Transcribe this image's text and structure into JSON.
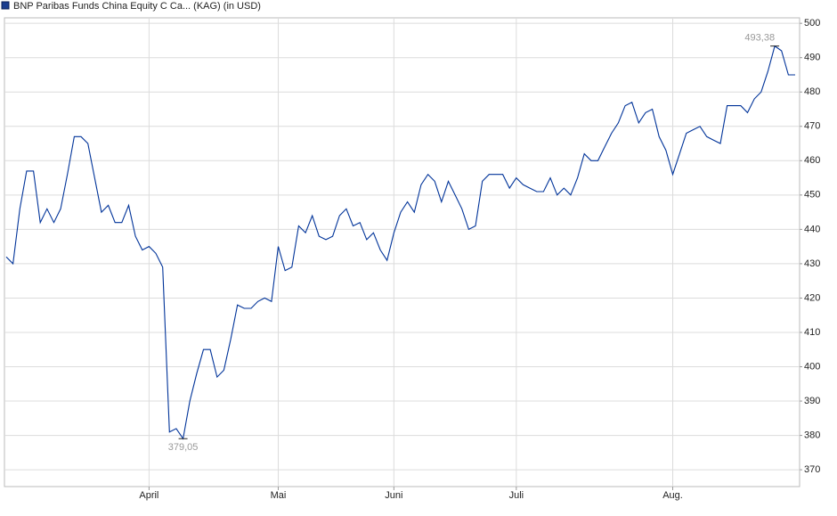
{
  "chart_data": {
    "type": "line",
    "categories": [
      null,
      null,
      null,
      null,
      null,
      null,
      null,
      null,
      null,
      null,
      null,
      null,
      null,
      null,
      null,
      null,
      null,
      null,
      null,
      null,
      null,
      "April",
      null,
      null,
      null,
      null,
      null,
      null,
      null,
      null,
      null,
      null,
      null,
      null,
      null,
      null,
      null,
      null,
      null,
      null,
      "Mai",
      null,
      null,
      null,
      null,
      null,
      null,
      null,
      null,
      null,
      null,
      null,
      null,
      null,
      null,
      null,
      null,
      "Juni",
      null,
      null,
      null,
      null,
      null,
      null,
      null,
      null,
      null,
      null,
      null,
      null,
      null,
      null,
      null,
      null,
      null,
      "Juli",
      null,
      null,
      null,
      null,
      null,
      null,
      null,
      null,
      null,
      null,
      null,
      null,
      null,
      null,
      null,
      null,
      null,
      null,
      null,
      null,
      null,
      null,
      "Aug.",
      null,
      null,
      null,
      null,
      null,
      null,
      null,
      null,
      null,
      null,
      null,
      null,
      null,
      null,
      null,
      null,
      null,
      null
    ],
    "series": [
      {
        "name": "BNP Paribas Funds China Equity C Ca... (KAG) (in USD)",
        "color": "#003399",
        "values": [
          432,
          430,
          446,
          457,
          457,
          442,
          446,
          442,
          446,
          456,
          467,
          467,
          465,
          455,
          445,
          447,
          442,
          442,
          447,
          438,
          434,
          435,
          433,
          429,
          381,
          382,
          379.05,
          390,
          398,
          405,
          405,
          397,
          399,
          408,
          418,
          417,
          417,
          419,
          420,
          419,
          435,
          428,
          429,
          441,
          439,
          444,
          438,
          437,
          438,
          444,
          446,
          441,
          442,
          437,
          439,
          434,
          431,
          439,
          445,
          448,
          445,
          453,
          456,
          454,
          448,
          454,
          450,
          446,
          440,
          441,
          454,
          456,
          456,
          456,
          452,
          455,
          453,
          452,
          451,
          451,
          455,
          450,
          452,
          450,
          455,
          462,
          460,
          460,
          464,
          468,
          471,
          476,
          477,
          471,
          474,
          475,
          467,
          463,
          456,
          462,
          468,
          469,
          470,
          467,
          466,
          465,
          476,
          476,
          476,
          474,
          478,
          480,
          486,
          493.38,
          492,
          485,
          485
        ],
        "value_labels": [
          null,
          null,
          null,
          null,
          null,
          null,
          null,
          null,
          null,
          null,
          null,
          null,
          null,
          null,
          null,
          null,
          null,
          null,
          null,
          null,
          null,
          null,
          null,
          null,
          null,
          null,
          "379,05",
          null,
          null,
          null,
          null,
          null,
          null,
          null,
          null,
          null,
          null,
          null,
          null,
          null,
          null,
          null,
          null,
          null,
          null,
          null,
          null,
          null,
          null,
          null,
          null,
          null,
          null,
          null,
          null,
          null,
          null,
          null,
          null,
          null,
          null,
          null,
          null,
          null,
          null,
          null,
          null,
          null,
          null,
          null,
          null,
          null,
          null,
          null,
          null,
          null,
          null,
          null,
          null,
          null,
          null,
          null,
          null,
          null,
          null,
          null,
          null,
          null,
          null,
          null,
          null,
          null,
          null,
          null,
          null,
          null,
          null,
          null,
          null,
          null,
          null,
          null,
          null,
          null,
          null,
          null,
          null,
          null,
          null,
          null,
          null,
          null,
          null,
          "493,38",
          null,
          null,
          null
        ]
      }
    ],
    "ylim": [
      365.1,
      501.6
    ],
    "yticks": [
      370,
      380,
      390,
      400,
      410,
      420,
      430,
      440,
      450,
      460,
      470,
      480,
      490,
      500
    ],
    "grid": true
  }
}
